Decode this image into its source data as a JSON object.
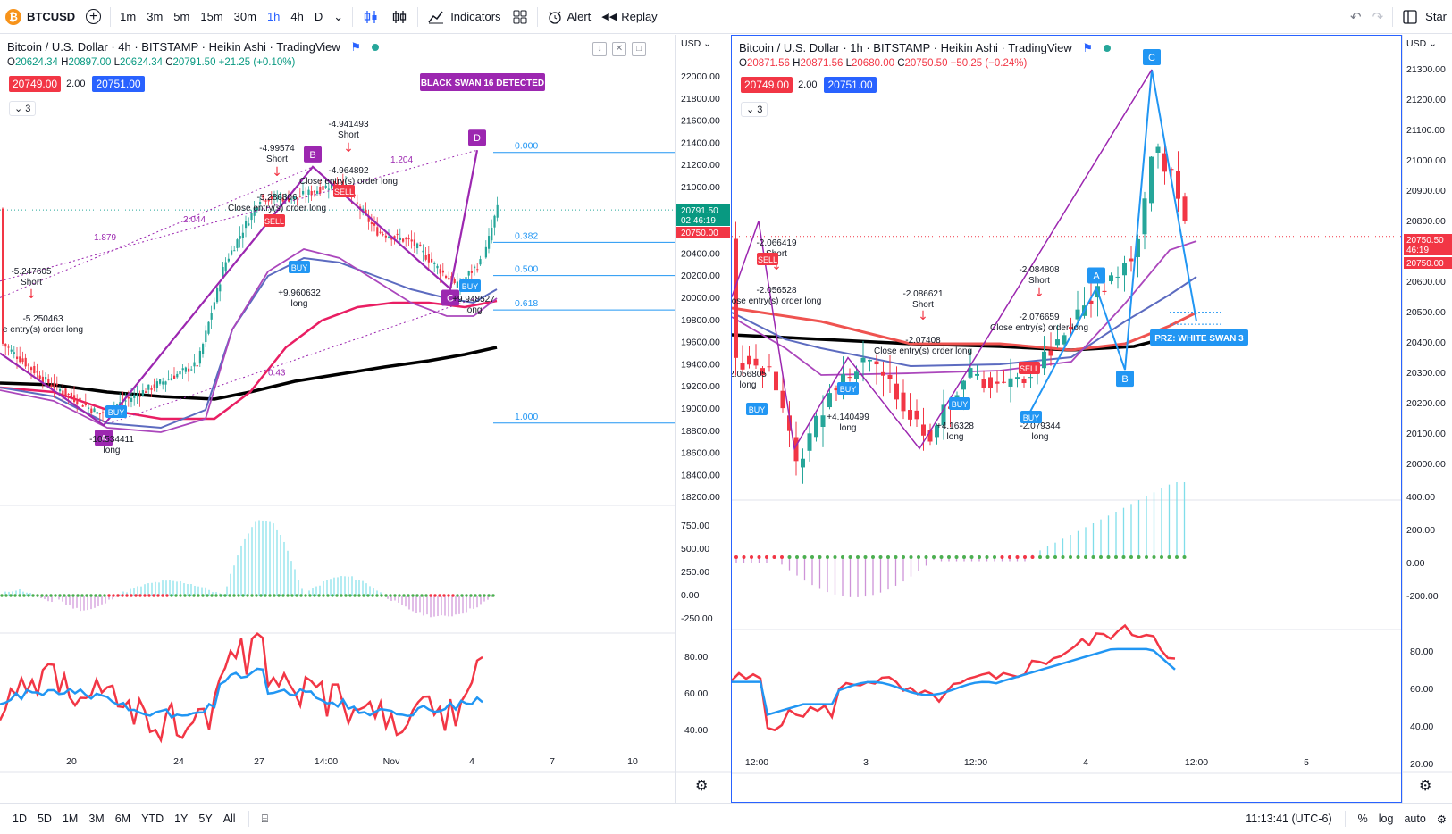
{
  "toolbar": {
    "symbol": "BTCUSD",
    "intervals": [
      "1m",
      "3m",
      "5m",
      "15m",
      "30m",
      "1h",
      "4h",
      "D"
    ],
    "active_interval": "1h",
    "indicators_label": "Indicators",
    "alert_label": "Alert",
    "replay_label": "Replay",
    "start_label": "Star"
  },
  "left_chart": {
    "title": "Bitcoin / U.S. Dollar · 4h · BITSTAMP · Heikin Ashi · TradingView",
    "o_label": "O",
    "o": "20624.34",
    "h_label": "H",
    "h": "20897.00",
    "l_label": "L",
    "l": "20624.34",
    "c_label": "C",
    "c": "20791.50",
    "change": "+21.25 (+0.10%)",
    "bid": "20749.00",
    "spread": "2.00",
    "ask": "20751.00",
    "collapse": "3",
    "axis_currency": "USD",
    "price_ticks": [
      "22000.00",
      "21800.00",
      "21600.00",
      "21400.00",
      "21200.00",
      "21000.00",
      "20800.00",
      "20600.00",
      "20400.00",
      "20200.00",
      "20000.00",
      "19800.00",
      "19600.00",
      "19400.00",
      "19200.00",
      "19000.00",
      "18800.00",
      "18600.00",
      "18400.00",
      "18200.00"
    ],
    "last_price": "20791.50",
    "countdown": "02:46:19",
    "last_price2": "20750.00",
    "osc_ticks": [
      "750.00",
      "500.00",
      "250.00",
      "0.00",
      "-250.00"
    ],
    "rsi_ticks": [
      "80.00",
      "60.00",
      "40.00"
    ],
    "x_ticks": [
      "20",
      "24",
      "27",
      "14:00",
      "Nov",
      "4",
      "7",
      "10"
    ],
    "badge_black_swan": "BLACK SWAN 16 DETECTED",
    "fib_levels": [
      "0.000",
      "0.382",
      "0.500",
      "0.618",
      "1.000"
    ],
    "points": [
      "A",
      "B",
      "C",
      "D"
    ],
    "ratios": [
      "1.879",
      "2.044",
      "1.204",
      "0.43"
    ],
    "annotations": [
      {
        "value": "-5.247605",
        "type": "Short"
      },
      {
        "value": "-5.250463",
        "text": "e entry(s) order long"
      },
      {
        "value": "-4.99574",
        "type": "Short"
      },
      {
        "value": "-4.941493",
        "type": "Short"
      },
      {
        "value": "-4.964892",
        "text": "Close entry(s) order long"
      },
      {
        "value": "-5.286806",
        "text": "Close entry(s) order long"
      },
      {
        "value": "+9.960632",
        "type": "long"
      },
      {
        "value": "-10.534411",
        "type": "long"
      },
      {
        "value": "+9.948527",
        "type": "long"
      }
    ],
    "signals": [
      "SELL",
      "BUY",
      "BUY",
      "SELL",
      "BUY"
    ]
  },
  "right_chart": {
    "title": "Bitcoin / U.S. Dollar · 1h · BITSTAMP · Heikin Ashi · TradingView",
    "o_label": "O",
    "o": "20871.56",
    "h_label": "H",
    "h": "20871.56",
    "l_label": "L",
    "l": "20680.00",
    "c_label": "C",
    "c": "20750.50",
    "change": "−50.25 (−0.24%)",
    "bid": "20749.00",
    "spread": "2.00",
    "ask": "20751.00",
    "collapse": "3",
    "axis_currency": "USD",
    "price_ticks": [
      "21300.00",
      "21200.00",
      "21100.00",
      "21000.00",
      "20900.00",
      "20800.00",
      "20700.00",
      "20600.00",
      "20500.00",
      "20400.00",
      "20300.00",
      "20200.00",
      "20100.00",
      "20000.00"
    ],
    "last_price": "20750.50",
    "countdown": "46:19",
    "last_price2": "20750.00",
    "osc_ticks": [
      "400.00",
      "200.00",
      "0.00",
      "-200.00"
    ],
    "rsi_ticks": [
      "80.00",
      "60.00",
      "40.00",
      "20.00"
    ],
    "x_ticks": [
      "12:00",
      "3",
      "12:00",
      "4",
      "12:00",
      "5"
    ],
    "badge_white_swan": "PRZ: WHITE SWAN 3",
    "points": [
      "A",
      "B",
      "C"
    ],
    "annotations": [
      {
        "value": "-2.066419",
        "type": "Short"
      },
      {
        "value": "-2.056528",
        "text": "ose entry(s) order long"
      },
      {
        "value": "2.056805",
        "type": "long"
      },
      {
        "value": "-2.086621",
        "type": "Short"
      },
      {
        "value": "-2.07408",
        "text": "Close entry(s) order long"
      },
      {
        "value": "-2.084808",
        "type": "Short"
      },
      {
        "value": "-2.076659",
        "text": "Close entry(s) order long"
      },
      {
        "value": "+4.140499",
        "type": "long"
      },
      {
        "value": "+4.16328",
        "type": "long"
      },
      {
        "value": "-2.079344",
        "type": "long"
      }
    ],
    "signals": [
      "SELL",
      "BUY",
      "BUY",
      "BUY",
      "SELL",
      "BUY"
    ]
  },
  "bottom": {
    "ranges": [
      "1D",
      "5D",
      "1M",
      "3M",
      "6M",
      "YTD",
      "1Y",
      "5Y",
      "All"
    ],
    "time": "11:13:41 (UTC-6)",
    "percent": "%",
    "log": "log",
    "auto": "auto"
  },
  "colors": {
    "up": "#26a69a",
    "down": "#f23645",
    "accent": "#2962ff",
    "purple": "#9c27b0",
    "blue": "#2196f3"
  }
}
